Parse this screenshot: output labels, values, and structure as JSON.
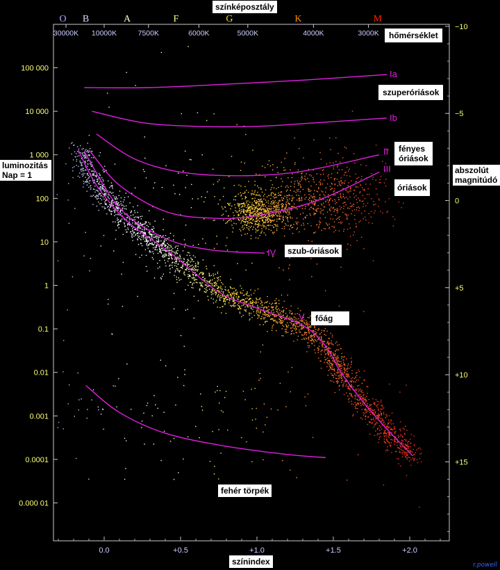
{
  "chart_data": {
    "type": "scatter",
    "title": "színképosztály",
    "xlabel": "színindex",
    "ylabel_left": "luminozitás\nNap = 1",
    "ylabel_right": "abszolút\nmagnitúdó",
    "top_axis_label": "hőmérséklet",
    "xlim": [
      -0.33,
      2.27
    ],
    "x_ticks": [
      {
        "value": 0.0,
        "label": "0.0"
      },
      {
        "value": 0.5,
        "label": "+0.5"
      },
      {
        "value": 1.0,
        "label": "+1.0"
      },
      {
        "value": 1.5,
        "label": "+1.5"
      },
      {
        "value": 2.0,
        "label": "+2.0"
      }
    ],
    "luminosity_ticks": [
      {
        "value": 100000,
        "label": "100 000"
      },
      {
        "value": 10000,
        "label": "10 000"
      },
      {
        "value": 1000,
        "label": "1 000"
      },
      {
        "value": 100,
        "label": "100"
      },
      {
        "value": 10,
        "label": "10"
      },
      {
        "value": 1,
        "label": "1"
      },
      {
        "value": 0.1,
        "label": "0.1"
      },
      {
        "value": 0.01,
        "label": "0.01"
      },
      {
        "value": 0.001,
        "label": "0.001"
      },
      {
        "value": 0.0001,
        "label": "0.0001"
      },
      {
        "value": 1e-05,
        "label": "0.000 01"
      }
    ],
    "magnitude_ticks": [
      {
        "value": -10,
        "label": "−10"
      },
      {
        "value": -5,
        "label": "−5"
      },
      {
        "value": 0,
        "label": "0"
      },
      {
        "value": 5,
        "label": "+5"
      },
      {
        "value": 10,
        "label": "+10"
      },
      {
        "value": 15,
        "label": "+15"
      }
    ],
    "spectral_classes": [
      {
        "label": "O",
        "x": -0.27,
        "color": "#aaaaff"
      },
      {
        "label": "B",
        "x": -0.12,
        "color": "#ddddff"
      },
      {
        "label": "A",
        "x": 0.15,
        "color": "#ffffcc"
      },
      {
        "label": "F",
        "x": 0.47,
        "color": "#ffff88"
      },
      {
        "label": "G",
        "x": 0.82,
        "color": "#ffdd00"
      },
      {
        "label": "K",
        "x": 1.27,
        "color": "#ff8800"
      },
      {
        "label": "M",
        "x": 1.79,
        "color": "#ff2200"
      }
    ],
    "temperature_ticks": [
      {
        "label": "30000K",
        "x": -0.25
      },
      {
        "label": "10000K",
        "x": 0.0
      },
      {
        "label": "7500K",
        "x": 0.29
      },
      {
        "label": "6000K",
        "x": 0.62
      },
      {
        "label": "5000K",
        "x": 0.94
      },
      {
        "label": "4000K",
        "x": 1.37
      },
      {
        "label": "3000K",
        "x": 1.73
      }
    ],
    "luminosity_classes": [
      {
        "name": "Ia",
        "label": "szuperóriások",
        "points": [
          [
            -0.13,
            35000
          ],
          [
            0.3,
            35000
          ],
          [
            0.8,
            42000
          ],
          [
            1.3,
            52000
          ],
          [
            1.85,
            70000
          ]
        ]
      },
      {
        "name": "Ib",
        "label": "",
        "points": [
          [
            -0.08,
            10000
          ],
          [
            0.25,
            5500
          ],
          [
            0.6,
            4500
          ],
          [
            1.0,
            4500
          ],
          [
            1.4,
            5500
          ],
          [
            1.85,
            7000
          ]
        ]
      },
      {
        "name": "II",
        "label": "fényes\nóriások",
        "points": [
          [
            -0.05,
            3000
          ],
          [
            0.2,
            800
          ],
          [
            0.5,
            400
          ],
          [
            0.9,
            330
          ],
          [
            1.3,
            420
          ],
          [
            1.8,
            1000
          ]
        ]
      },
      {
        "name": "III",
        "label": "óriások",
        "points": [
          [
            -0.1,
            1300
          ],
          [
            0.1,
            200
          ],
          [
            0.4,
            50
          ],
          [
            0.7,
            35
          ],
          [
            1.0,
            40
          ],
          [
            1.4,
            90
          ],
          [
            1.8,
            400
          ]
        ]
      },
      {
        "name": "IV",
        "label": "szub-óriások",
        "points": [
          [
            -0.13,
            1200
          ],
          [
            0.1,
            60
          ],
          [
            0.4,
            12
          ],
          [
            0.7,
            6.5
          ],
          [
            1.05,
            5.5
          ]
        ]
      },
      {
        "name": "V",
        "label": "főág",
        "points": [
          [
            -0.17,
            1300
          ],
          [
            -0.05,
            200
          ],
          [
            0.15,
            30
          ],
          [
            0.45,
            5
          ],
          [
            0.75,
            0.7
          ],
          [
            1.0,
            0.3
          ],
          [
            1.3,
            0.12
          ],
          [
            1.45,
            0.04
          ],
          [
            1.55,
            0.01
          ],
          [
            1.7,
            0.002
          ],
          [
            1.85,
            0.0005
          ],
          [
            2.02,
            0.00012
          ]
        ]
      },
      {
        "name": "",
        "label": "fehér törpék",
        "points": [
          [
            -0.12,
            0.005
          ],
          [
            0.1,
            0.0012
          ],
          [
            0.4,
            0.0004
          ],
          [
            0.8,
            0.0002
          ],
          [
            1.2,
            0.00013
          ],
          [
            1.45,
            0.00011
          ]
        ]
      }
    ],
    "point_density_regions": [
      {
        "points": [
          [
            -0.17,
            1300
          ],
          [
            -0.05,
            200
          ],
          [
            0.15,
            30
          ],
          [
            0.45,
            5
          ],
          [
            0.75,
            0.7
          ],
          [
            1.0,
            0.3
          ],
          [
            1.3,
            0.12
          ],
          [
            1.45,
            0.04
          ],
          [
            1.55,
            0.01
          ],
          [
            1.7,
            0.002
          ],
          [
            1.85,
            0.0005
          ],
          [
            2.02,
            0.00012
          ]
        ],
        "count": 2600
      },
      {
        "center": [
          1.02,
          50
        ],
        "count": 700
      },
      {
        "center": [
          1.45,
          100
        ],
        "count": 600
      },
      {
        "center": [
          0.6,
          30
        ],
        "count": 250
      },
      {
        "center": [
          0.6,
          0.001
        ],
        "count": 160
      }
    ]
  },
  "credit": "r.powell"
}
